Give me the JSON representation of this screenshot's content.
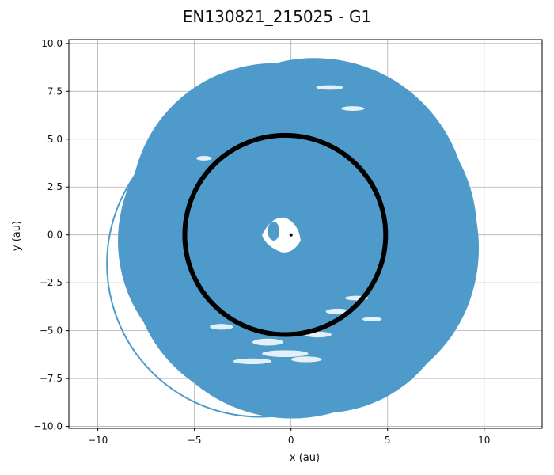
{
  "chart_data": {
    "type": "line",
    "title": "EN130821_215025 - G1",
    "xlabel": "x (au)",
    "ylabel": "y (au)",
    "xlim": [
      -11.5,
      13.0
    ],
    "ylim": [
      -10.1,
      10.2
    ],
    "x_ticks": [
      -10,
      -5,
      0,
      5,
      10
    ],
    "y_ticks": [
      -10.0,
      -7.5,
      -5.0,
      -2.5,
      0.0,
      2.5,
      5.0,
      7.5,
      10.0
    ],
    "x_tick_labels": [
      "−10",
      "−5",
      "0",
      "5",
      "10"
    ],
    "y_tick_labels": [
      "−10.0",
      "−7.5",
      "−5.0",
      "−2.5",
      "0.0",
      "2.5",
      "5.0",
      "7.5",
      "10.0"
    ],
    "grid": true,
    "colors": {
      "orbit": "#4e9bcb",
      "planet_orbit": "#000000",
      "star": "#000000"
    },
    "series": [
      {
        "kind": "particle-orbits",
        "color": "#4e9bcb",
        "x_extent": [
          -8.2,
          9.8
        ],
        "y_extent": [
          -9.5,
          9.5
        ]
      },
      {
        "kind": "planet-orbit",
        "color": "#000000",
        "center": [
          -0.3,
          0.0
        ],
        "radius": 5.2
      },
      {
        "kind": "star",
        "color": "#000000",
        "position": [
          0,
          0
        ]
      }
    ]
  }
}
